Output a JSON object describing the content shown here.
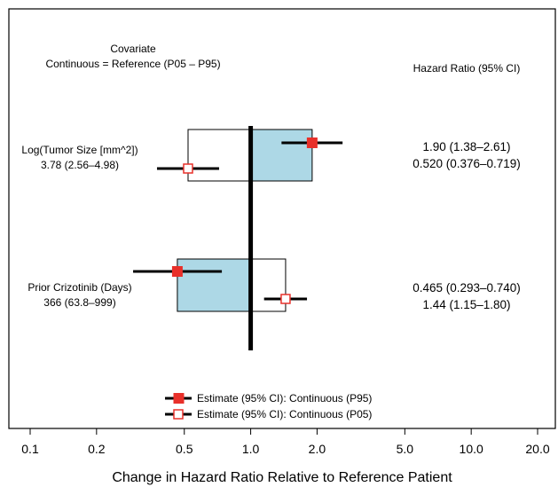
{
  "chart_data": {
    "type": "forest",
    "header": {
      "covariate_line1": "Covariate",
      "covariate_line2": "Continuous = Reference (P05 – P95)",
      "hazard_ratio": "Hazard Ratio (95% CI)"
    },
    "xlabel": "Change in Hazard Ratio Relative to Reference Patient",
    "x_scale": "log",
    "xlim": [
      0.1,
      20.0
    ],
    "x_ticks": [
      0.1,
      0.2,
      0.5,
      1.0,
      2.0,
      5.0,
      10.0,
      20.0
    ],
    "x_tick_labels": [
      "0.1",
      "0.2",
      "0.5",
      "1.0",
      "2.0",
      "5.0",
      "10.0",
      "20.0"
    ],
    "reference_line": 1.0,
    "covariates": [
      {
        "name": "Log(Tumor Size [mm^2])",
        "values_label": "3.78 (2.56–4.98)",
        "p95": {
          "estimate": 1.9,
          "lower": 1.38,
          "upper": 2.61,
          "label": "1.90 (1.38–2.61)"
        },
        "p05": {
          "estimate": 0.52,
          "lower": 0.376,
          "upper": 0.719,
          "label": "0.520 (0.376–0.719)"
        }
      },
      {
        "name": "Prior Crizotinib (Days)",
        "values_label": "366 (63.8–999)",
        "p95": {
          "estimate": 0.465,
          "lower": 0.293,
          "upper": 0.74,
          "label": "0.465 (0.293–0.740)"
        },
        "p05": {
          "estimate": 1.44,
          "lower": 1.15,
          "upper": 1.8,
          "label": "1.44 (1.15–1.80)"
        }
      }
    ],
    "legend": {
      "p95": "Estimate (95% CI): Continuous (P95)",
      "p05": "Estimate (95% CI): Continuous (P05)"
    },
    "colors": {
      "p95_box": "#add8e6",
      "p05_box": "#ffffff",
      "marker": "#e8302a",
      "line": "#000000"
    }
  }
}
